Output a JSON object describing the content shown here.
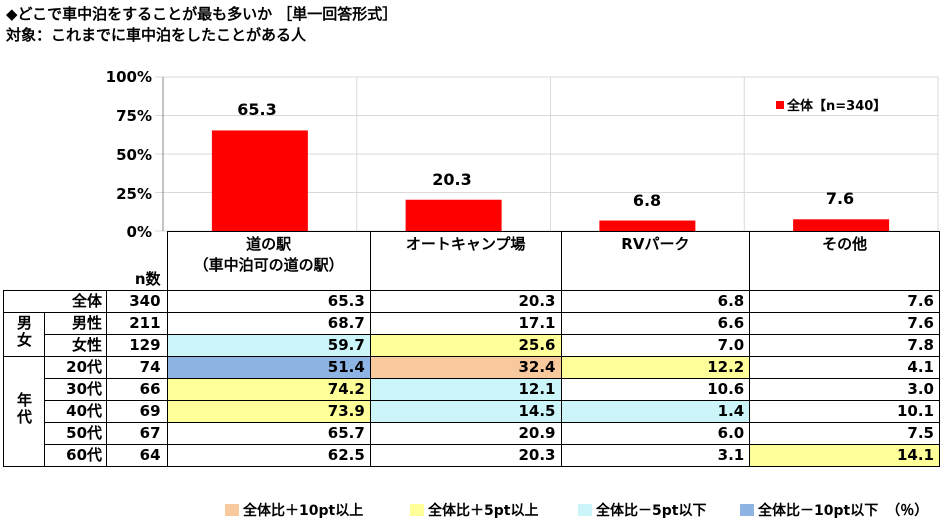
{
  "title": "◆どこで車中泊をすることが最も多いか ［単一回答形式］",
  "subtitle": "対象：これまでに車中泊をしたことがある人",
  "legend": "全体【n=340】",
  "colors": {
    "bar": "#ff0000",
    "orange": "#f9c99e",
    "yellow": "#ffff99",
    "cyan": "#ccf5fa",
    "blue": "#8db4e2"
  },
  "chart_data": {
    "type": "bar",
    "categories": [
      "道の駅（車中泊可の道の駅）",
      "オートキャンプ場",
      "RVパーク",
      "その他"
    ],
    "series": [
      {
        "name": "全体【n=340】",
        "values": [
          65.3,
          20.3,
          6.8,
          7.6
        ]
      }
    ],
    "value_labels": [
      "65.3",
      "20.3",
      "6.8",
      "7.6"
    ],
    "yticks": [
      "100%",
      "75%",
      "50%",
      "25%",
      "0%"
    ],
    "ylim": [
      0,
      100
    ],
    "grid": true,
    "legend_position": "top-right"
  },
  "table": {
    "n_header": "n数",
    "headers": [
      {
        "line1": "道の駅",
        "line2": "（車中泊可の道の駅）"
      },
      {
        "line1": "オートキャンプ場",
        "line2": ""
      },
      {
        "line1": "RVパーク",
        "line2": ""
      },
      {
        "line1": "その他",
        "line2": ""
      }
    ],
    "groups": {
      "gender": "男女",
      "age": "年代"
    },
    "rows": [
      {
        "label": "全体",
        "n": "340",
        "values": [
          "65.3",
          "20.3",
          "6.8",
          "7.6"
        ],
        "colors": [
          "",
          "",
          "",
          ""
        ]
      },
      {
        "label": "男性",
        "n": "211",
        "values": [
          "68.7",
          "17.1",
          "6.6",
          "7.6"
        ],
        "colors": [
          "",
          "",
          "",
          ""
        ]
      },
      {
        "label": "女性",
        "n": "129",
        "values": [
          "59.7",
          "25.6",
          "7.0",
          "7.8"
        ],
        "colors": [
          "cyan",
          "yellow",
          "",
          ""
        ]
      },
      {
        "label": "20代",
        "n": "74",
        "values": [
          "51.4",
          "32.4",
          "12.2",
          "4.1"
        ],
        "colors": [
          "blue",
          "orange",
          "yellow",
          ""
        ]
      },
      {
        "label": "30代",
        "n": "66",
        "values": [
          "74.2",
          "12.1",
          "10.6",
          "3.0"
        ],
        "colors": [
          "yellow",
          "cyan",
          "",
          ""
        ]
      },
      {
        "label": "40代",
        "n": "69",
        "values": [
          "73.9",
          "14.5",
          "1.4",
          "10.1"
        ],
        "colors": [
          "yellow",
          "cyan",
          "cyan",
          ""
        ]
      },
      {
        "label": "50代",
        "n": "67",
        "values": [
          "65.7",
          "20.9",
          "6.0",
          "7.5"
        ],
        "colors": [
          "",
          "",
          "",
          ""
        ]
      },
      {
        "label": "60代",
        "n": "64",
        "values": [
          "62.5",
          "20.3",
          "3.1",
          "14.1"
        ],
        "colors": [
          "",
          "",
          "",
          "yellow"
        ]
      }
    ]
  },
  "footer": {
    "orange": "全体比＋10pt以上",
    "yellow": "全体比＋5pt以上",
    "cyan": "全体比－5pt以下",
    "blue": "全体比－10pt以下",
    "unit": "（％）"
  }
}
